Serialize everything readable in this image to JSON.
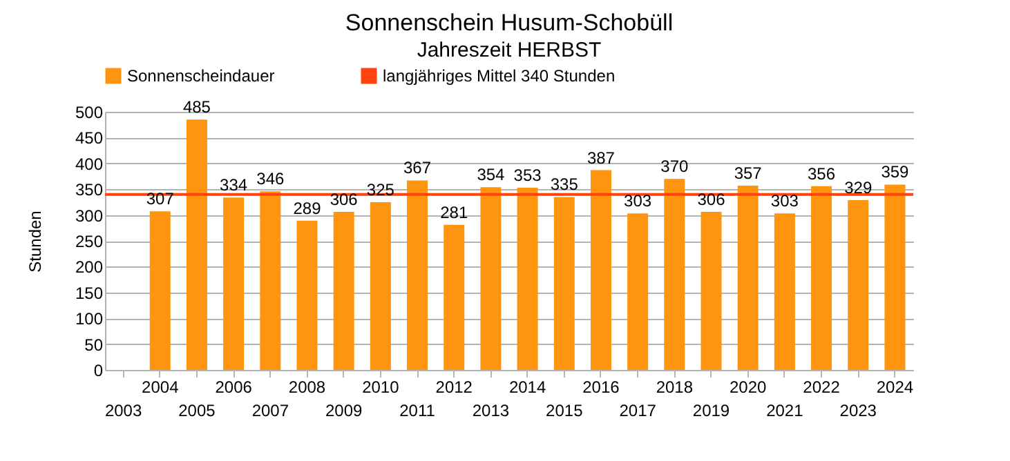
{
  "chart_data": {
    "type": "bar",
    "title": "Sonnenschein  Husum-Schobüll",
    "subtitle": "Jahreszeit  HERBST",
    "ylabel": "Stunden",
    "categories": [
      "2003",
      "2004",
      "2005",
      "2006",
      "2007",
      "2008",
      "2009",
      "2010",
      "2011",
      "2012",
      "2013",
      "2014",
      "2015",
      "2016",
      "2017",
      "2018",
      "2019",
      "2020",
      "2021",
      "2022",
      "2023",
      "2024"
    ],
    "series": [
      {
        "name": "Sonnenscheindauer",
        "color": "#ff950e",
        "values": [
          null,
          307,
          485,
          334,
          346,
          289,
          306,
          325,
          367,
          281,
          354,
          353,
          335,
          387,
          303,
          370,
          306,
          357,
          303,
          356,
          329,
          359
        ]
      }
    ],
    "ref_lines": [
      {
        "axis": "y",
        "value": 340,
        "label": "langjähriges Mittel 340 Stunden",
        "color": "#ff420e"
      }
    ],
    "ylim": [
      0,
      500
    ],
    "yticks": [
      0,
      50,
      100,
      150,
      200,
      250,
      300,
      350,
      400,
      450,
      500
    ],
    "grid": "y",
    "legend": "top",
    "data_labels": true
  }
}
